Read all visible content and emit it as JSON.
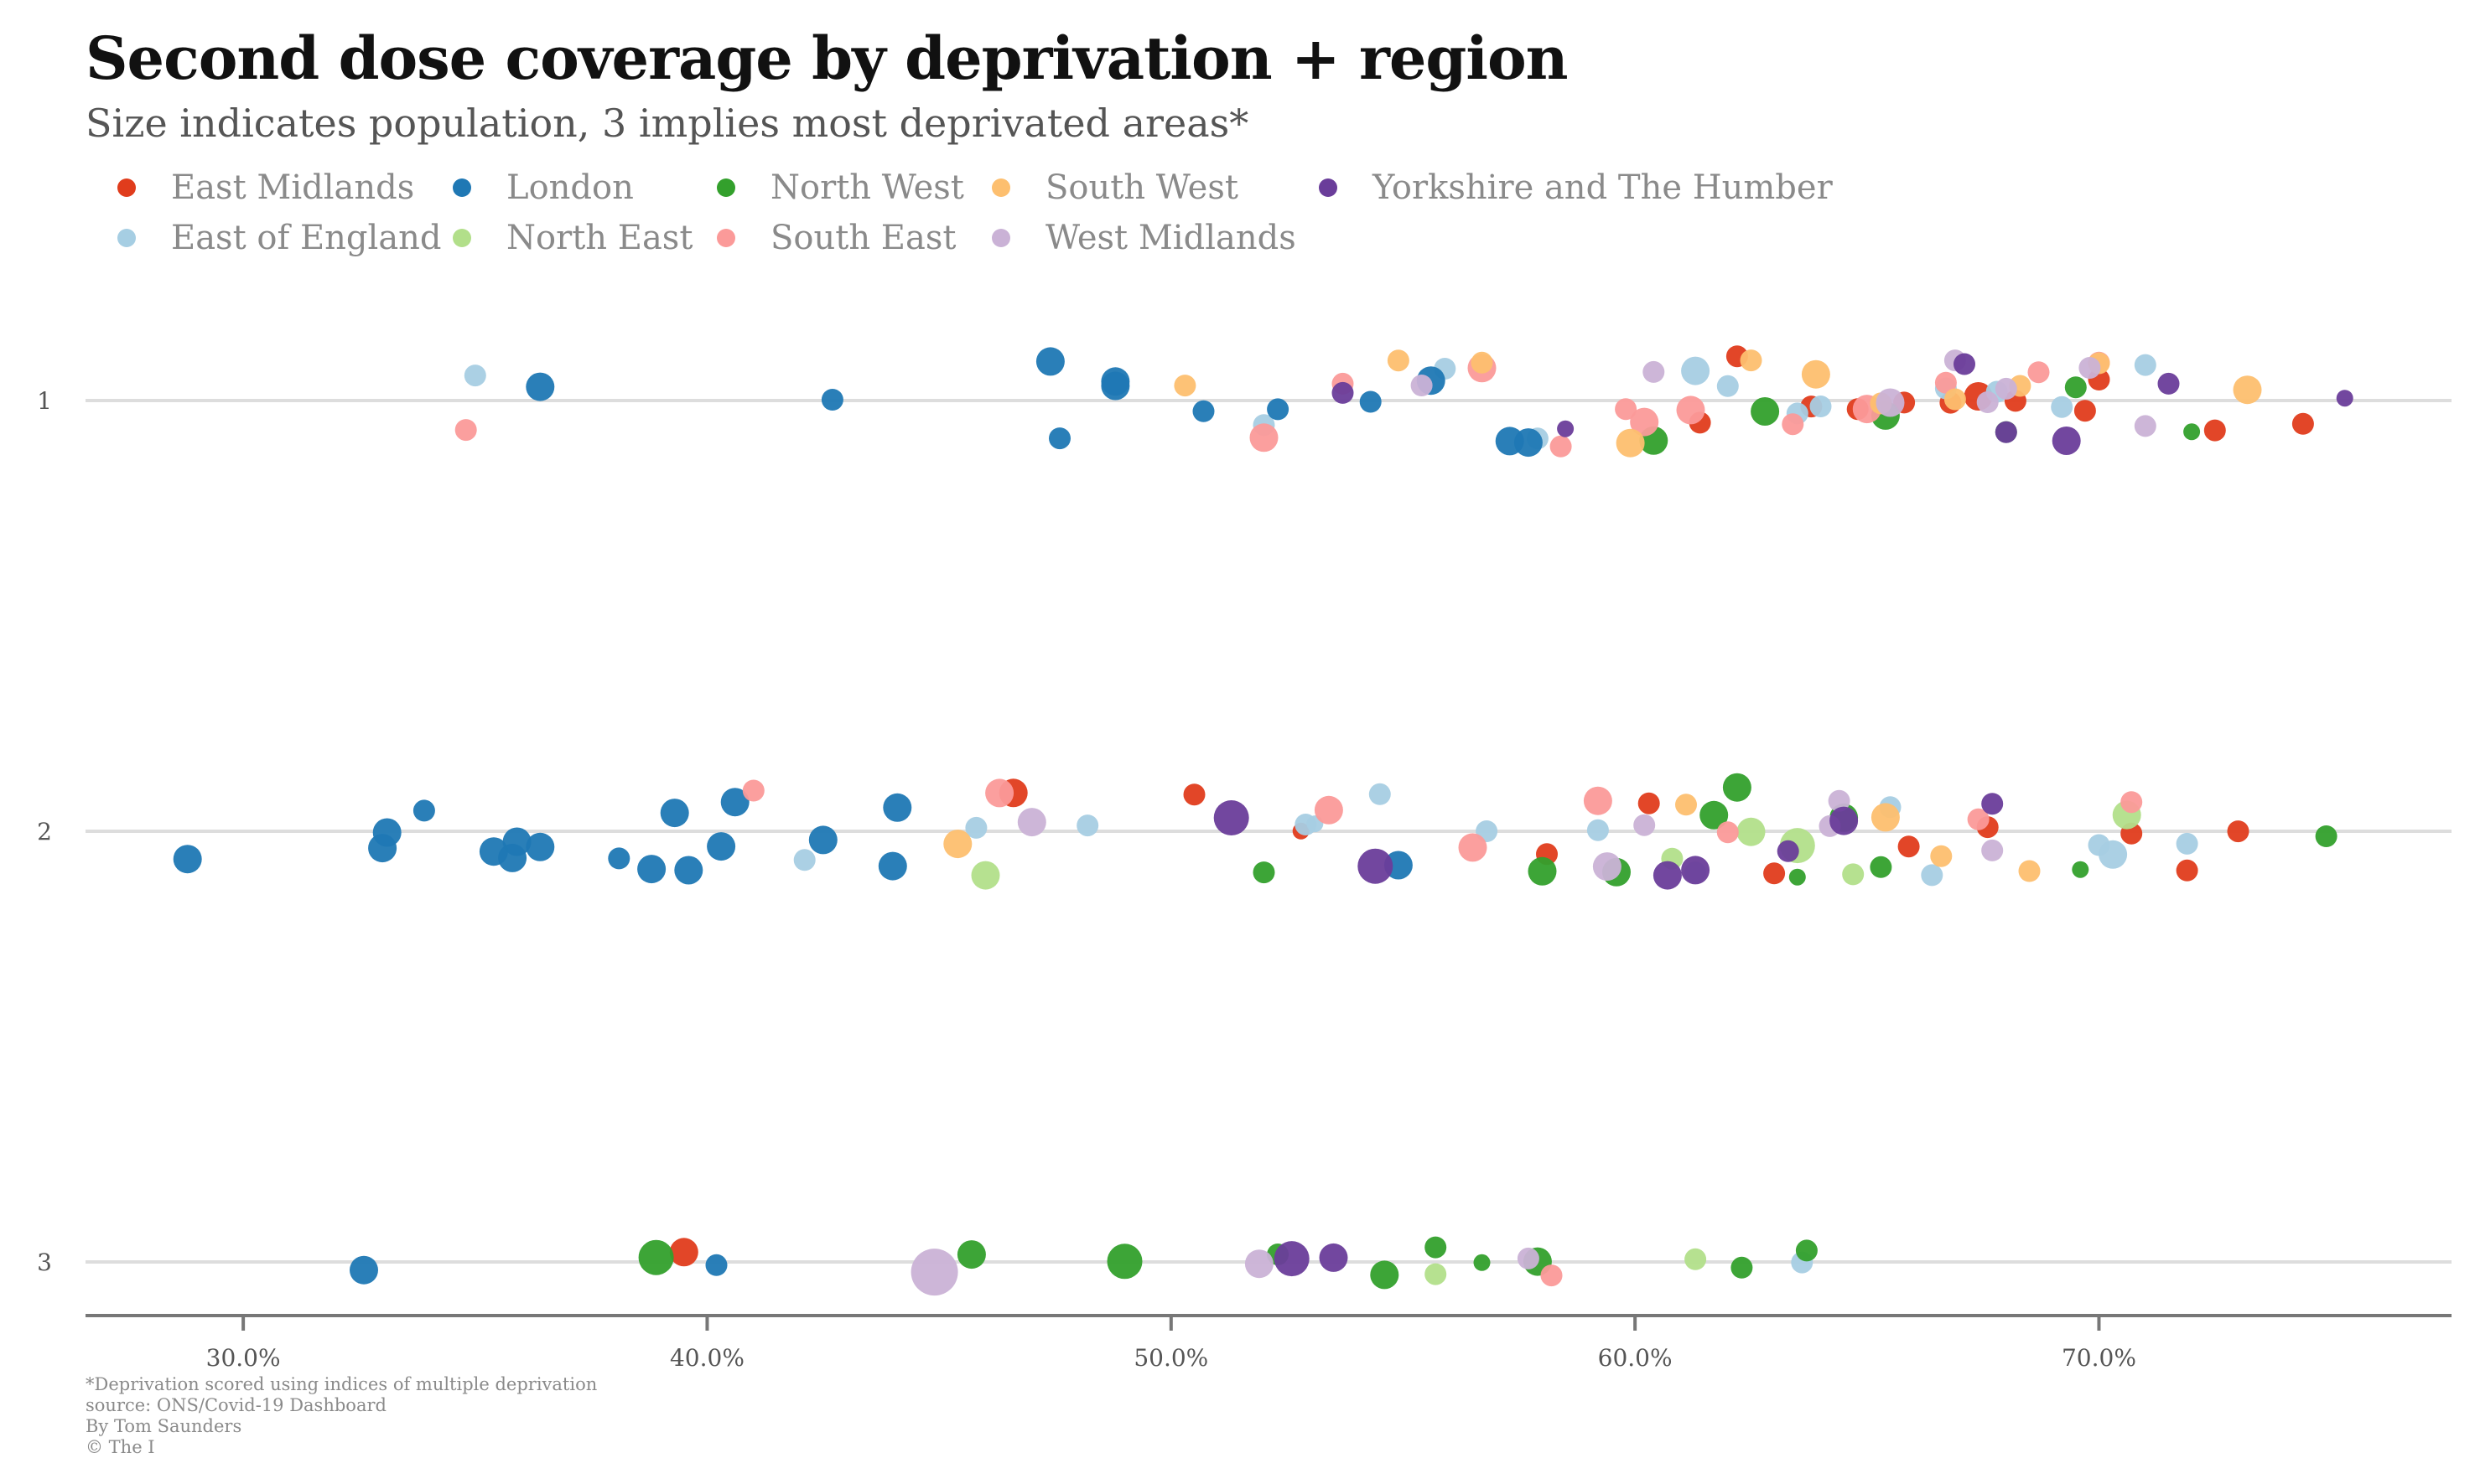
{
  "chart_title": "Second dose coverage by deprivation + region",
  "chart_subtitle": "Size indicates population, 3 implies most deprivated areas*",
  "footnote": {
    "line1": "*Deprivation scored using indices of multiple deprivation",
    "line2": "source: ONS/Covid-19 Dashboard",
    "line3": "By Tom Saunders",
    "line4": "© The I"
  },
  "legend_items": [
    {
      "label": "East Midlands",
      "color": "#e03c1c"
    },
    {
      "label": "East of England",
      "color": "#a6cee3"
    },
    {
      "label": "London",
      "color": "#1f78b4"
    },
    {
      "label": "North East",
      "color": "#b2df8a"
    },
    {
      "label": "North West",
      "color": "#33a02c"
    },
    {
      "label": "South East",
      "color": "#fb9a99"
    },
    {
      "label": "South West",
      "color": "#fdbf6f"
    },
    {
      "label": "West Midlands",
      "color": "#cab2d6"
    },
    {
      "label": "Yorkshire and The Humber",
      "color": "#6a3d9a"
    }
  ],
  "chart_data": {
    "type": "scatter",
    "title": "Second dose coverage by deprivation + region",
    "subtitle": "Size indicates population, 3 implies most deprivated areas*",
    "x_axis": {
      "min": 26.6,
      "max": 77.6,
      "ticks": [
        30,
        40,
        50,
        60,
        70
      ],
      "tick_labels": [
        "30.0%",
        "40.0%",
        "50.0%",
        "60.0%",
        "70.0%"
      ],
      "format": "percent"
    },
    "y_axis": {
      "categories": [
        "1",
        "2",
        "3"
      ],
      "label_position": "left"
    },
    "grid": "horizontal lines at each deprivation level",
    "legend_position": "top-left",
    "size_encoding": "population",
    "series": [
      {
        "name": "East Midlands",
        "points": [
          {
            "x": 61.4,
            "level": 1,
            "s": 2
          },
          {
            "x": 63.8,
            "level": 1,
            "s": 2
          },
          {
            "x": 67.4,
            "level": 1,
            "s": 3
          },
          {
            "x": 70.0,
            "level": 1,
            "s": 2
          },
          {
            "x": 72.5,
            "level": 1,
            "s": 2
          },
          {
            "x": 74.4,
            "level": 1,
            "s": 2
          },
          {
            "x": 68.2,
            "level": 1,
            "s": 2
          },
          {
            "x": 66.8,
            "level": 1,
            "s": 2
          },
          {
            "x": 65.8,
            "level": 1,
            "s": 2
          },
          {
            "x": 62.2,
            "level": 1,
            "s": 2
          },
          {
            "x": 64.8,
            "level": 1,
            "s": 2
          },
          {
            "x": 69.7,
            "level": 1,
            "s": 2
          },
          {
            "x": 60.3,
            "level": 2,
            "s": 2
          },
          {
            "x": 58.1,
            "level": 2,
            "s": 2
          },
          {
            "x": 65.9,
            "level": 2,
            "s": 2
          },
          {
            "x": 63.0,
            "level": 2,
            "s": 2
          },
          {
            "x": 67.6,
            "level": 2,
            "s": 2
          },
          {
            "x": 71.9,
            "level": 2,
            "s": 2
          },
          {
            "x": 73.0,
            "level": 2,
            "s": 2
          },
          {
            "x": 70.7,
            "level": 2,
            "s": 2
          },
          {
            "x": 52.8,
            "level": 2,
            "s": 1
          },
          {
            "x": 50.5,
            "level": 2,
            "s": 2
          },
          {
            "x": 46.6,
            "level": 2,
            "s": 3
          },
          {
            "x": 39.5,
            "level": 3,
            "s": 3
          }
        ]
      },
      {
        "name": "East of England",
        "points": [
          {
            "x": 35.0,
            "level": 1,
            "s": 2
          },
          {
            "x": 52.0,
            "level": 1,
            "s": 2
          },
          {
            "x": 55.9,
            "level": 1,
            "s": 2
          },
          {
            "x": 57.9,
            "level": 1,
            "s": 2
          },
          {
            "x": 61.3,
            "level": 1,
            "s": 3
          },
          {
            "x": 62.0,
            "level": 1,
            "s": 2
          },
          {
            "x": 64.0,
            "level": 1,
            "s": 2
          },
          {
            "x": 66.7,
            "level": 1,
            "s": 2
          },
          {
            "x": 67.8,
            "level": 1,
            "s": 2
          },
          {
            "x": 69.2,
            "level": 1,
            "s": 2
          },
          {
            "x": 71.0,
            "level": 1,
            "s": 2
          },
          {
            "x": 63.5,
            "level": 1,
            "s": 2
          },
          {
            "x": 42.1,
            "level": 2,
            "s": 2
          },
          {
            "x": 45.8,
            "level": 2,
            "s": 2
          },
          {
            "x": 48.2,
            "level": 2,
            "s": 2
          },
          {
            "x": 52.9,
            "level": 2,
            "s": 2
          },
          {
            "x": 53.1,
            "level": 2,
            "s": 1
          },
          {
            "x": 54.5,
            "level": 2,
            "s": 2
          },
          {
            "x": 56.8,
            "level": 2,
            "s": 2
          },
          {
            "x": 59.2,
            "level": 2,
            "s": 2
          },
          {
            "x": 61.3,
            "level": 2,
            "s": 2
          },
          {
            "x": 65.5,
            "level": 2,
            "s": 2
          },
          {
            "x": 66.4,
            "level": 2,
            "s": 2
          },
          {
            "x": 70.0,
            "level": 2,
            "s": 2
          },
          {
            "x": 70.3,
            "level": 2,
            "s": 3
          },
          {
            "x": 71.9,
            "level": 2,
            "s": 2
          },
          {
            "x": 63.6,
            "level": 3,
            "s": 2
          }
        ]
      },
      {
        "name": "London",
        "points": [
          {
            "x": 36.4,
            "level": 1,
            "s": 3
          },
          {
            "x": 42.7,
            "level": 1,
            "s": 2
          },
          {
            "x": 47.4,
            "level": 1,
            "s": 3
          },
          {
            "x": 47.6,
            "level": 1,
            "s": 2
          },
          {
            "x": 48.8,
            "level": 1,
            "s": 3
          },
          {
            "x": 48.8,
            "level": 1,
            "s": 3
          },
          {
            "x": 50.7,
            "level": 1,
            "s": 2
          },
          {
            "x": 52.3,
            "level": 1,
            "s": 2
          },
          {
            "x": 54.3,
            "level": 1,
            "s": 2
          },
          {
            "x": 55.6,
            "level": 1,
            "s": 3
          },
          {
            "x": 57.3,
            "level": 1,
            "s": 3
          },
          {
            "x": 57.7,
            "level": 1,
            "s": 3
          },
          {
            "x": 28.8,
            "level": 2,
            "s": 3
          },
          {
            "x": 33.0,
            "level": 2,
            "s": 3
          },
          {
            "x": 33.1,
            "level": 2,
            "s": 3
          },
          {
            "x": 33.9,
            "level": 2,
            "s": 2
          },
          {
            "x": 35.4,
            "level": 2,
            "s": 3
          },
          {
            "x": 35.8,
            "level": 2,
            "s": 3
          },
          {
            "x": 35.9,
            "level": 2,
            "s": 3
          },
          {
            "x": 36.4,
            "level": 2,
            "s": 3
          },
          {
            "x": 38.1,
            "level": 2,
            "s": 2
          },
          {
            "x": 38.8,
            "level": 2,
            "s": 3
          },
          {
            "x": 39.3,
            "level": 2,
            "s": 3
          },
          {
            "x": 39.6,
            "level": 2,
            "s": 3
          },
          {
            "x": 40.3,
            "level": 2,
            "s": 3
          },
          {
            "x": 40.6,
            "level": 2,
            "s": 3
          },
          {
            "x": 42.5,
            "level": 2,
            "s": 3
          },
          {
            "x": 44.0,
            "level": 2,
            "s": 3
          },
          {
            "x": 44.1,
            "level": 2,
            "s": 3
          },
          {
            "x": 54.9,
            "level": 2,
            "s": 3
          },
          {
            "x": 32.6,
            "level": 3,
            "s": 3
          },
          {
            "x": 40.2,
            "level": 3,
            "s": 2
          }
        ]
      },
      {
        "name": "North East",
        "points": [
          {
            "x": 46.0,
            "level": 2,
            "s": 3
          },
          {
            "x": 60.8,
            "level": 2,
            "s": 2
          },
          {
            "x": 62.5,
            "level": 2,
            "s": 3
          },
          {
            "x": 63.5,
            "level": 2,
            "s": 4
          },
          {
            "x": 64.7,
            "level": 2,
            "s": 2
          },
          {
            "x": 70.6,
            "level": 2,
            "s": 3
          },
          {
            "x": 55.7,
            "level": 3,
            "s": 2
          },
          {
            "x": 61.3,
            "level": 3,
            "s": 2
          }
        ]
      },
      {
        "name": "North West",
        "points": [
          {
            "x": 60.4,
            "level": 1,
            "s": 3
          },
          {
            "x": 62.8,
            "level": 1,
            "s": 3
          },
          {
            "x": 65.4,
            "level": 1,
            "s": 3
          },
          {
            "x": 68.0,
            "level": 1,
            "s": 2
          },
          {
            "x": 69.5,
            "level": 1,
            "s": 2
          },
          {
            "x": 72.0,
            "level": 1,
            "s": 1
          },
          {
            "x": 58.0,
            "level": 2,
            "s": 3
          },
          {
            "x": 59.6,
            "level": 2,
            "s": 3
          },
          {
            "x": 62.2,
            "level": 2,
            "s": 3
          },
          {
            "x": 61.7,
            "level": 2,
            "s": 3
          },
          {
            "x": 64.5,
            "level": 2,
            "s": 3
          },
          {
            "x": 65.3,
            "level": 2,
            "s": 2
          },
          {
            "x": 63.5,
            "level": 2,
            "s": 1
          },
          {
            "x": 69.6,
            "level": 2,
            "s": 1
          },
          {
            "x": 74.9,
            "level": 2,
            "s": 2
          },
          {
            "x": 52.0,
            "level": 2,
            "s": 2
          },
          {
            "x": 38.9,
            "level": 3,
            "s": 4
          },
          {
            "x": 45.7,
            "level": 3,
            "s": 3
          },
          {
            "x": 49.0,
            "level": 3,
            "s": 4
          },
          {
            "x": 52.3,
            "level": 3,
            "s": 2
          },
          {
            "x": 54.6,
            "level": 3,
            "s": 3
          },
          {
            "x": 55.7,
            "level": 3,
            "s": 2
          },
          {
            "x": 56.7,
            "level": 3,
            "s": 1
          },
          {
            "x": 57.9,
            "level": 3,
            "s": 3
          },
          {
            "x": 62.3,
            "level": 3,
            "s": 2
          },
          {
            "x": 63.7,
            "level": 3,
            "s": 2
          }
        ]
      },
      {
        "name": "South East",
        "points": [
          {
            "x": 34.8,
            "level": 1,
            "s": 2
          },
          {
            "x": 52.0,
            "level": 1,
            "s": 3
          },
          {
            "x": 53.7,
            "level": 1,
            "s": 2
          },
          {
            "x": 56.7,
            "level": 1,
            "s": 3
          },
          {
            "x": 58.4,
            "level": 1,
            "s": 2
          },
          {
            "x": 59.8,
            "level": 1,
            "s": 2
          },
          {
            "x": 60.2,
            "level": 1,
            "s": 3
          },
          {
            "x": 61.2,
            "level": 1,
            "s": 3
          },
          {
            "x": 63.4,
            "level": 1,
            "s": 2
          },
          {
            "x": 65.0,
            "level": 1,
            "s": 3
          },
          {
            "x": 66.7,
            "level": 1,
            "s": 2
          },
          {
            "x": 68.7,
            "level": 1,
            "s": 2
          },
          {
            "x": 70.0,
            "level": 1,
            "s": 2
          },
          {
            "x": 41.0,
            "level": 2,
            "s": 2
          },
          {
            "x": 46.3,
            "level": 2,
            "s": 3
          },
          {
            "x": 53.4,
            "level": 2,
            "s": 3
          },
          {
            "x": 56.5,
            "level": 2,
            "s": 3
          },
          {
            "x": 59.2,
            "level": 2,
            "s": 3
          },
          {
            "x": 62.0,
            "level": 2,
            "s": 2
          },
          {
            "x": 67.4,
            "level": 2,
            "s": 2
          },
          {
            "x": 70.7,
            "level": 2,
            "s": 2
          },
          {
            "x": 58.2,
            "level": 3,
            "s": 2
          }
        ]
      },
      {
        "name": "South West",
        "points": [
          {
            "x": 50.3,
            "level": 1,
            "s": 2
          },
          {
            "x": 54.9,
            "level": 1,
            "s": 2
          },
          {
            "x": 56.7,
            "level": 1,
            "s": 2
          },
          {
            "x": 59.9,
            "level": 1,
            "s": 3
          },
          {
            "x": 62.5,
            "level": 1,
            "s": 2
          },
          {
            "x": 63.9,
            "level": 1,
            "s": 3
          },
          {
            "x": 65.3,
            "level": 1,
            "s": 2
          },
          {
            "x": 66.9,
            "level": 1,
            "s": 2
          },
          {
            "x": 68.3,
            "level": 1,
            "s": 2
          },
          {
            "x": 70.0,
            "level": 1,
            "s": 2
          },
          {
            "x": 73.2,
            "level": 1,
            "s": 3
          },
          {
            "x": 45.4,
            "level": 2,
            "s": 3
          },
          {
            "x": 61.1,
            "level": 2,
            "s": 2
          },
          {
            "x": 65.4,
            "level": 2,
            "s": 3
          },
          {
            "x": 66.6,
            "level": 2,
            "s": 2
          },
          {
            "x": 68.5,
            "level": 2,
            "s": 2
          }
        ]
      },
      {
        "name": "West Midlands",
        "points": [
          {
            "x": 55.4,
            "level": 1,
            "s": 2
          },
          {
            "x": 60.4,
            "level": 1,
            "s": 2
          },
          {
            "x": 65.5,
            "level": 1,
            "s": 3
          },
          {
            "x": 66.9,
            "level": 1,
            "s": 2
          },
          {
            "x": 67.6,
            "level": 1,
            "s": 2
          },
          {
            "x": 68.0,
            "level": 1,
            "s": 2
          },
          {
            "x": 69.8,
            "level": 1,
            "s": 2
          },
          {
            "x": 71.0,
            "level": 1,
            "s": 2
          },
          {
            "x": 47.0,
            "level": 2,
            "s": 3
          },
          {
            "x": 59.4,
            "level": 2,
            "s": 3
          },
          {
            "x": 60.2,
            "level": 2,
            "s": 2
          },
          {
            "x": 64.2,
            "level": 2,
            "s": 2
          },
          {
            "x": 64.4,
            "level": 2,
            "s": 2
          },
          {
            "x": 67.7,
            "level": 2,
            "s": 2
          },
          {
            "x": 44.9,
            "level": 3,
            "s": 5
          },
          {
            "x": 51.9,
            "level": 3,
            "s": 3
          },
          {
            "x": 57.7,
            "level": 3,
            "s": 2
          }
        ]
      },
      {
        "name": "Yorkshire and The Humber",
        "points": [
          {
            "x": 53.7,
            "level": 1,
            "s": 2
          },
          {
            "x": 58.5,
            "level": 1,
            "s": 1
          },
          {
            "x": 67.1,
            "level": 1,
            "s": 2
          },
          {
            "x": 68.0,
            "level": 1,
            "s": 2
          },
          {
            "x": 69.3,
            "level": 1,
            "s": 3
          },
          {
            "x": 71.5,
            "level": 1,
            "s": 2
          },
          {
            "x": 75.3,
            "level": 1,
            "s": 1
          },
          {
            "x": 51.3,
            "level": 2,
            "s": 4
          },
          {
            "x": 54.4,
            "level": 2,
            "s": 4
          },
          {
            "x": 60.7,
            "level": 2,
            "s": 3
          },
          {
            "x": 61.3,
            "level": 2,
            "s": 3
          },
          {
            "x": 63.3,
            "level": 2,
            "s": 2
          },
          {
            "x": 64.5,
            "level": 2,
            "s": 3
          },
          {
            "x": 67.7,
            "level": 2,
            "s": 2
          },
          {
            "x": 52.6,
            "level": 3,
            "s": 4
          },
          {
            "x": 53.5,
            "level": 3,
            "s": 3
          }
        ]
      }
    ]
  }
}
